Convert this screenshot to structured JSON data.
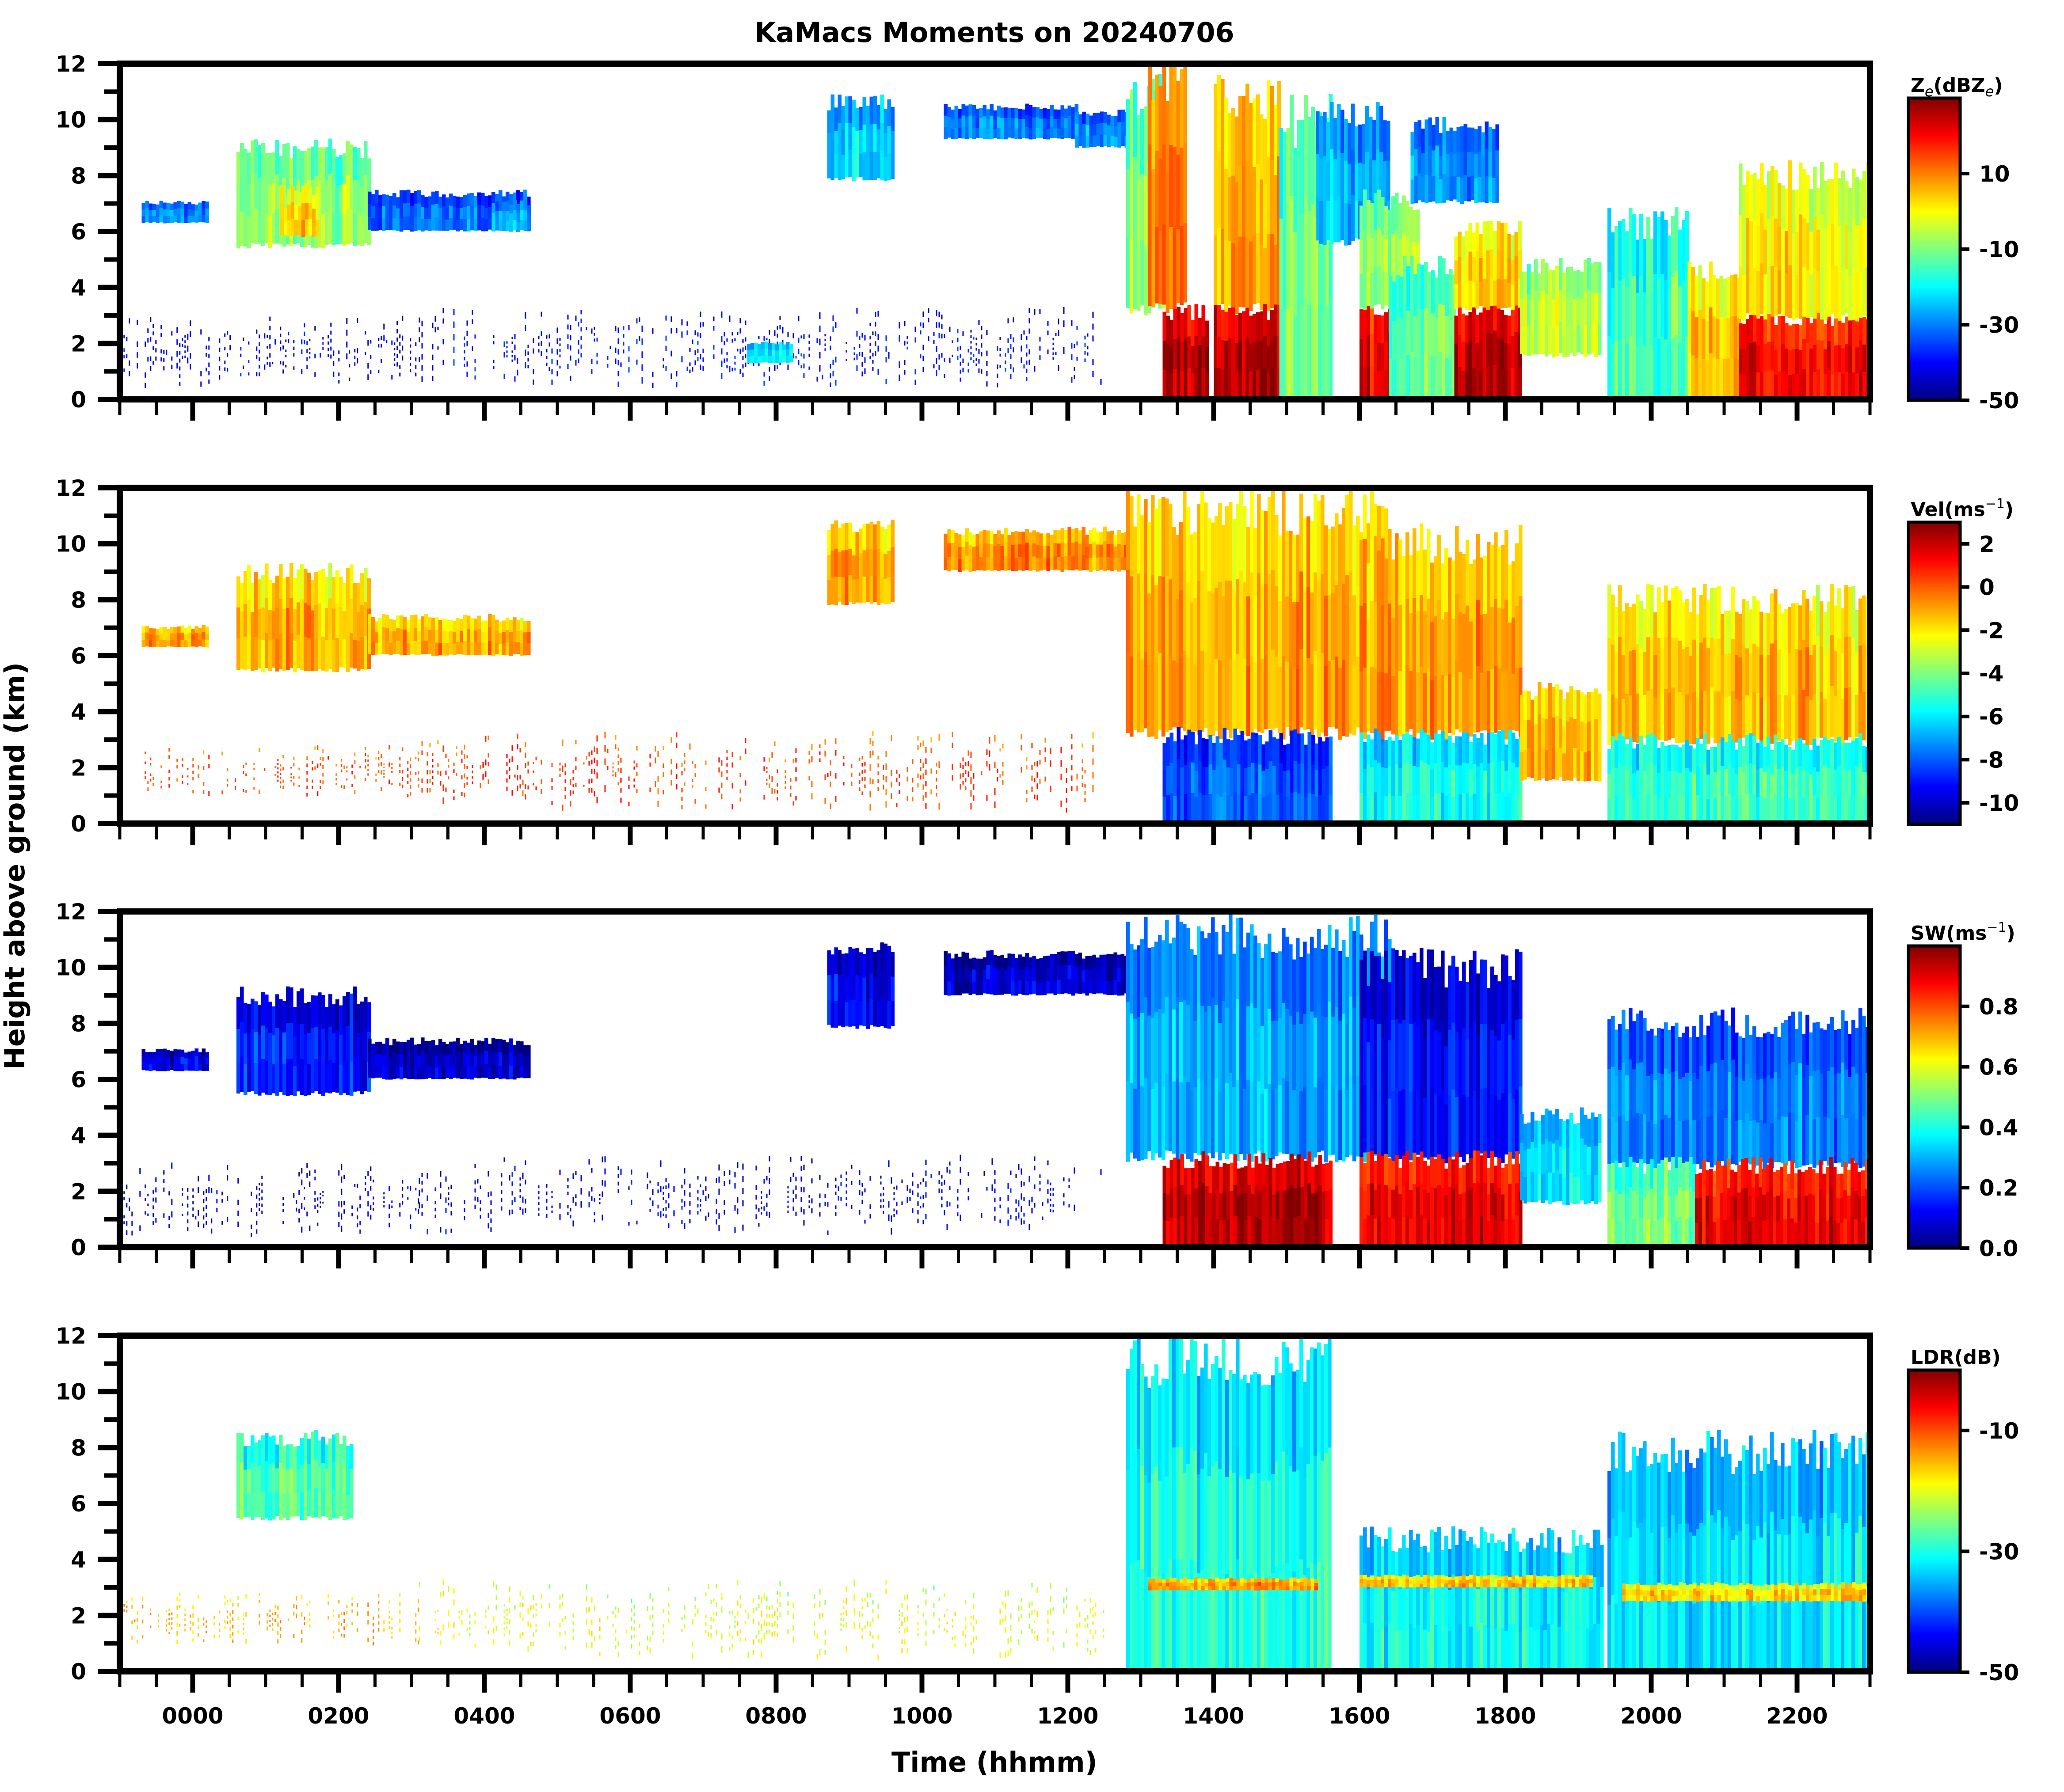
{
  "chart_data": {
    "type": "heatmap",
    "title": "KaMacs Moments on 20240706",
    "xlabel": "Time (hhmm)",
    "ylabel": "Height above ground (km)",
    "x_units": "hours",
    "xlim": [
      -1,
      23
    ],
    "ylim": [
      0,
      12
    ],
    "x_major_ticks": [
      0,
      2,
      4,
      6,
      8,
      10,
      12,
      14,
      16,
      18,
      20,
      22
    ],
    "x_tick_labels": [
      "0000",
      "0200",
      "0400",
      "0600",
      "0800",
      "1000",
      "1200",
      "1400",
      "1600",
      "1800",
      "2000",
      "2200"
    ],
    "x_minor_step_hours": 0.5,
    "y_major_ticks": [
      0,
      2,
      4,
      6,
      8,
      10,
      12
    ],
    "y_tick_labels": [
      "0",
      "2",
      "4",
      "6",
      "8",
      "10",
      "12"
    ],
    "y_minor_step_km": 1,
    "colormap": "jet",
    "colormap_stops": [
      "#00007f",
      "#0000ff",
      "#007fff",
      "#00ffff",
      "#7fff7f",
      "#ffff00",
      "#ff7f00",
      "#ff0000",
      "#7f0000"
    ],
    "panels": [
      {
        "name": "reflectivity",
        "colorbar_label_main": "Z",
        "colorbar_label_sub": "e",
        "colorbar_label_mid": "(dBZ",
        "colorbar_label_sub2": "e",
        "colorbar_label_end": ")",
        "vlim": [
          -50,
          30
        ],
        "colorbar_ticks": [
          10,
          -10,
          -30,
          -50
        ],
        "colorbar_tick_labels": [
          "10",
          "-10",
          "-30",
          "-50"
        ],
        "echoes": [
          {
            "t0": -0.95,
            "t1": 3.1,
            "z0": 0.2,
            "z1": 2.3,
            "v": -42,
            "sparse": true
          },
          {
            "t0": 3.1,
            "t1": 12.5,
            "z0": 0.2,
            "z1": 2.5,
            "v": -40,
            "sparse": true
          },
          {
            "t0": 7.6,
            "t1": 8.2,
            "z0": 1.3,
            "z1": 2.0,
            "v": -22
          },
          {
            "t0": 0.6,
            "t1": 2.4,
            "z0": 5.4,
            "z1": 8.8,
            "v": -8
          },
          {
            "t0": 1.2,
            "t1": 1.7,
            "z0": 5.8,
            "z1": 7.4,
            "v": 4
          },
          {
            "t0": -0.7,
            "t1": 0.2,
            "z0": 6.3,
            "z1": 7.0,
            "v": -30
          },
          {
            "t0": 2.4,
            "t1": 4.6,
            "z0": 6.0,
            "z1": 7.3,
            "v": -30
          },
          {
            "t0": 4.1,
            "t1": 4.6,
            "z0": 6.0,
            "z1": 7.0,
            "v": -26
          },
          {
            "t0": 8.7,
            "t1": 9.6,
            "z0": 7.8,
            "z1": 10.5,
            "v": -22
          },
          {
            "t0": 10.3,
            "t1": 12.1,
            "z0": 9.3,
            "z1": 10.4,
            "v": -30
          },
          {
            "t0": 12.1,
            "t1": 12.8,
            "z0": 9.0,
            "z1": 10.2,
            "v": -28
          },
          {
            "t0": 12.8,
            "t1": 13.3,
            "z0": 3.0,
            "z1": 10.5,
            "v": -8
          },
          {
            "t0": 13.1,
            "t1": 13.6,
            "z0": 3.0,
            "z1": 11.0,
            "v": 12
          },
          {
            "t0": 13.3,
            "t1": 13.9,
            "z0": 0.0,
            "z1": 3.0,
            "v": 26
          },
          {
            "t0": 14.0,
            "t1": 14.9,
            "z0": 3.0,
            "z1": 10.5,
            "v": 8
          },
          {
            "t0": 14.0,
            "t1": 14.9,
            "z0": 0.0,
            "z1": 3.0,
            "v": 26
          },
          {
            "t0": 14.9,
            "t1": 15.6,
            "z0": 0.0,
            "z1": 9.5,
            "v": -10
          },
          {
            "t0": 15.4,
            "t1": 16.4,
            "z0": 5.5,
            "z1": 10.0,
            "v": -25
          },
          {
            "t0": 16.0,
            "t1": 16.6,
            "z0": 0.0,
            "z1": 3.2,
            "v": 22
          },
          {
            "t0": 16.0,
            "t1": 16.8,
            "z0": 3.2,
            "z1": 7.0,
            "v": -8
          },
          {
            "t0": 16.4,
            "t1": 17.3,
            "z0": 0.0,
            "z1": 4.5,
            "v": -12
          },
          {
            "t0": 16.7,
            "t1": 17.9,
            "z0": 7.0,
            "z1": 9.7,
            "v": -28
          },
          {
            "t0": 17.3,
            "t1": 18.2,
            "z0": 0.0,
            "z1": 3.2,
            "v": 26
          },
          {
            "t0": 17.3,
            "t1": 18.2,
            "z0": 3.2,
            "z1": 6.0,
            "v": 4
          },
          {
            "t0": 18.2,
            "t1": 19.3,
            "z0": 1.5,
            "z1": 4.6,
            "v": -6
          },
          {
            "t0": 19.4,
            "t1": 20.5,
            "z0": 0.0,
            "z1": 6.0,
            "v": -14
          },
          {
            "t0": 20.5,
            "t1": 21.2,
            "z0": 0.0,
            "z1": 4.5,
            "v": 6
          },
          {
            "t0": 21.2,
            "t1": 23.0,
            "z0": 0.0,
            "z1": 2.8,
            "v": 20
          },
          {
            "t0": 21.2,
            "t1": 23.0,
            "z0": 2.8,
            "z1": 7.8,
            "v": 2
          }
        ]
      },
      {
        "name": "velocity",
        "colorbar_label_main": "Vel(ms",
        "colorbar_label_sup": "−1",
        "colorbar_label_end": ")",
        "vlim": [
          -11,
          3
        ],
        "colorbar_ticks": [
          2,
          0,
          -2,
          -4,
          -6,
          -8,
          -10
        ],
        "colorbar_tick_labels": [
          "2",
          "0",
          "-2",
          "-4",
          "-6",
          "-8",
          "-10"
        ],
        "echoes": [
          {
            "t0": -0.95,
            "t1": 3.1,
            "z0": 0.8,
            "z1": 2.3,
            "v": 0.2,
            "sparse": true
          },
          {
            "t0": 3.1,
            "t1": 12.5,
            "z0": 0.2,
            "z1": 2.5,
            "v": 0.4,
            "sparse": true
          },
          {
            "t0": 0.6,
            "t1": 2.4,
            "z0": 5.4,
            "z1": 8.8,
            "v": -1.2
          },
          {
            "t0": -0.7,
            "t1": 0.2,
            "z0": 6.3,
            "z1": 7.0,
            "v": -0.8
          },
          {
            "t0": 2.4,
            "t1": 4.6,
            "z0": 6.0,
            "z1": 7.3,
            "v": -1.0
          },
          {
            "t0": 8.7,
            "t1": 9.6,
            "z0": 7.8,
            "z1": 10.5,
            "v": -0.8
          },
          {
            "t0": 10.3,
            "t1": 12.8,
            "z0": 9.0,
            "z1": 10.4,
            "v": -0.6
          },
          {
            "t0": 12.8,
            "t1": 16.4,
            "z0": 3.0,
            "z1": 10.8,
            "v": -1.0
          },
          {
            "t0": 13.3,
            "t1": 15.6,
            "z0": 0.0,
            "z1": 3.0,
            "v": -8.0
          },
          {
            "t0": 16.0,
            "t1": 18.2,
            "z0": 3.0,
            "z1": 9.7,
            "v": -0.9
          },
          {
            "t0": 16.0,
            "t1": 18.2,
            "z0": 0.0,
            "z1": 3.0,
            "v": -5.5
          },
          {
            "t0": 18.2,
            "t1": 19.3,
            "z0": 1.5,
            "z1": 4.6,
            "v": -1.2
          },
          {
            "t0": 19.4,
            "t1": 23.0,
            "z0": 2.8,
            "z1": 7.8,
            "v": -1.4
          },
          {
            "t0": 19.4,
            "t1": 23.0,
            "z0": 0.0,
            "z1": 2.8,
            "v": -5.0
          }
        ]
      },
      {
        "name": "spectrum_width",
        "colorbar_label_main": "SW(ms",
        "colorbar_label_sup": "−1",
        "colorbar_label_end": ")",
        "vlim": [
          0.0,
          1.0
        ],
        "colorbar_ticks": [
          0.8,
          0.6,
          0.4,
          0.2,
          0.0
        ],
        "colorbar_tick_labels": [
          "0.8",
          "0.6",
          "0.4",
          "0.2",
          "0.0"
        ],
        "echoes": [
          {
            "t0": -0.95,
            "t1": 3.1,
            "z0": 0.2,
            "z1": 2.3,
            "v": 0.08,
            "sparse": true
          },
          {
            "t0": 3.1,
            "t1": 12.5,
            "z0": 0.2,
            "z1": 2.5,
            "v": 0.1,
            "sparse": true
          },
          {
            "t0": 0.6,
            "t1": 2.4,
            "z0": 5.4,
            "z1": 8.8,
            "v": 0.15
          },
          {
            "t0": -0.7,
            "t1": 0.2,
            "z0": 6.3,
            "z1": 7.0,
            "v": 0.1
          },
          {
            "t0": 2.4,
            "t1": 4.6,
            "z0": 6.0,
            "z1": 7.3,
            "v": 0.08
          },
          {
            "t0": 8.7,
            "t1": 9.6,
            "z0": 7.8,
            "z1": 10.5,
            "v": 0.12
          },
          {
            "t0": 10.3,
            "t1": 12.8,
            "z0": 9.0,
            "z1": 10.4,
            "v": 0.08
          },
          {
            "t0": 12.8,
            "t1": 16.4,
            "z0": 3.0,
            "z1": 10.8,
            "v": 0.3
          },
          {
            "t0": 13.3,
            "t1": 15.6,
            "z0": 0.0,
            "z1": 3.0,
            "v": 0.95
          },
          {
            "t0": 16.0,
            "t1": 18.2,
            "z0": 3.0,
            "z1": 9.7,
            "v": 0.15
          },
          {
            "t0": 16.0,
            "t1": 18.2,
            "z0": 0.0,
            "z1": 3.0,
            "v": 0.9
          },
          {
            "t0": 18.2,
            "t1": 19.3,
            "z0": 1.5,
            "z1": 4.6,
            "v": 0.35
          },
          {
            "t0": 19.4,
            "t1": 23.0,
            "z0": 2.8,
            "z1": 7.8,
            "v": 0.25
          },
          {
            "t0": 19.4,
            "t1": 20.6,
            "z0": 0.0,
            "z1": 2.8,
            "v": 0.5
          },
          {
            "t0": 20.6,
            "t1": 23.0,
            "z0": 0.0,
            "z1": 2.8,
            "v": 0.9
          }
        ]
      },
      {
        "name": "ldr",
        "colorbar_label_main": "LDR(dB)",
        "vlim": [
          -50,
          0
        ],
        "colorbar_ticks": [
          -10,
          -30,
          -50
        ],
        "colorbar_tick_labels": [
          "-10",
          "-30",
          "-50"
        ],
        "echoes": [
          {
            "t0": -0.95,
            "t1": 3.1,
            "z0": 0.8,
            "z1": 2.3,
            "v": -15,
            "sparse": true
          },
          {
            "t0": 3.1,
            "t1": 12.5,
            "z0": 0.2,
            "z1": 2.5,
            "v": -20,
            "sparse": true
          },
          {
            "t0": 0.6,
            "t1": 2.2,
            "z0": 5.4,
            "z1": 8.2,
            "v": -27
          },
          {
            "t0": 12.8,
            "t1": 15.6,
            "z0": 0.0,
            "z1": 10.8,
            "v": -30
          },
          {
            "t0": 13.1,
            "t1": 15.4,
            "z0": 2.9,
            "z1": 3.3,
            "v": -14
          },
          {
            "t0": 16.0,
            "t1": 19.3,
            "z0": 0.0,
            "z1": 4.5,
            "v": -31
          },
          {
            "t0": 16.0,
            "t1": 19.2,
            "z0": 3.0,
            "z1": 3.4,
            "v": -16
          },
          {
            "t0": 19.4,
            "t1": 23.0,
            "z0": 0.0,
            "z1": 7.5,
            "v": -32
          },
          {
            "t0": 19.6,
            "t1": 23.0,
            "z0": 2.5,
            "z1": 3.1,
            "v": -17
          }
        ]
      }
    ]
  }
}
